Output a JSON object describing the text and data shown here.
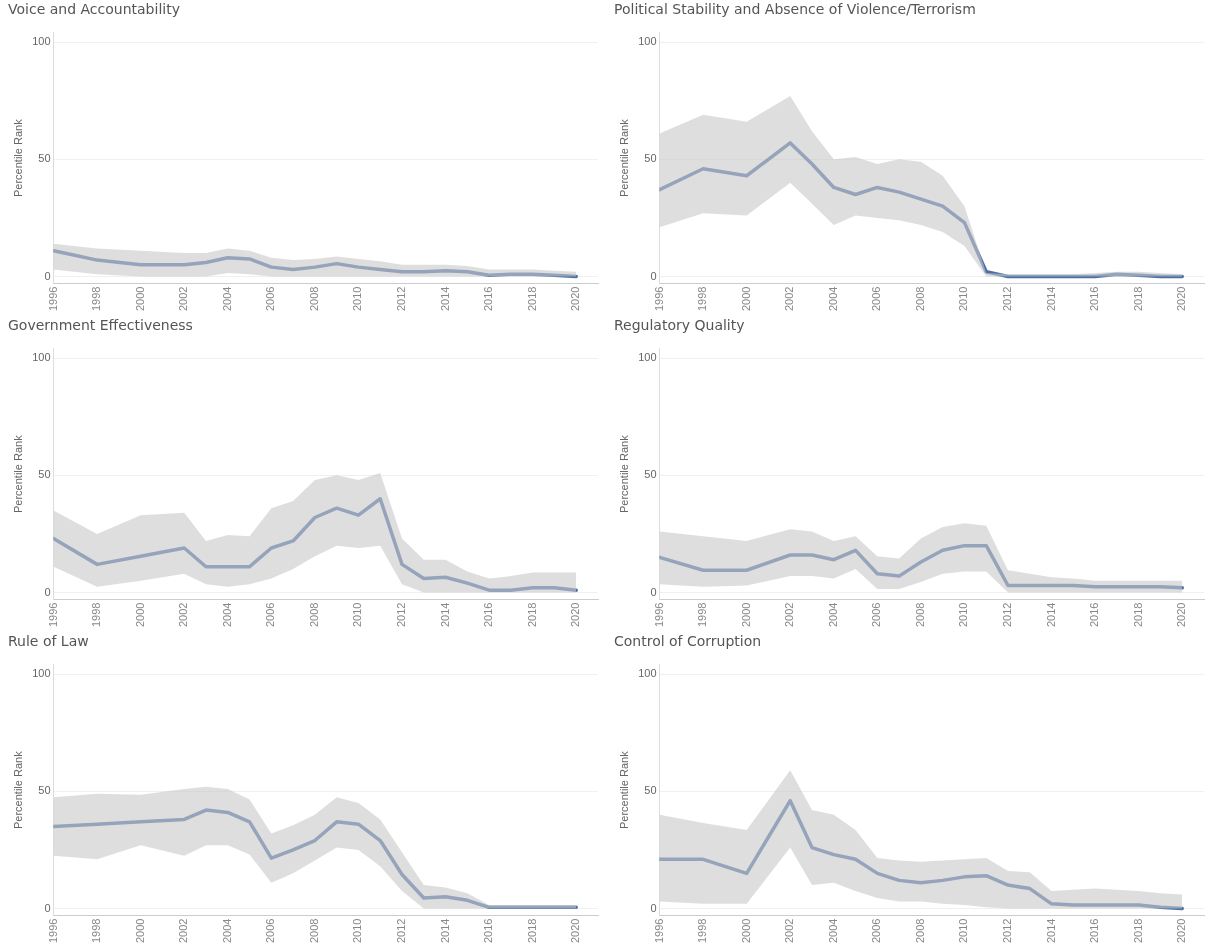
{
  "chart_data": [
    {
      "type": "line",
      "title": "Voice and Accountability",
      "ylabel": "Percentile Rank",
      "x": [
        1996,
        1998,
        2000,
        2002,
        2003,
        2004,
        2005,
        2006,
        2007,
        2008,
        2009,
        2010,
        2011,
        2012,
        2013,
        2014,
        2015,
        2016,
        2017,
        2018,
        2019,
        2020
      ],
      "xlim": [
        1996,
        2021
      ],
      "xticks": [
        1996,
        1998,
        2000,
        2002,
        2004,
        2006,
        2008,
        2010,
        2012,
        2014,
        2016,
        2018,
        2020
      ],
      "ylim": [
        -3,
        104
      ],
      "yticks": [
        0,
        50,
        100
      ],
      "grid": "y",
      "marker": "none",
      "series": [
        {
          "color": "#4a6fa5",
          "values": [
            11,
            7,
            5,
            5,
            6,
            8,
            7.5,
            4,
            3,
            4,
            5.5,
            4,
            3,
            2,
            2,
            2.5,
            2,
            0.5,
            1,
            1,
            0.5,
            0
          ],
          "lower": [
            3,
            1,
            0,
            0,
            0,
            1.5,
            1,
            0,
            0,
            0,
            0,
            0,
            0,
            0,
            0,
            0,
            0,
            0,
            0,
            0,
            0,
            0
          ],
          "upper": [
            14,
            12,
            11,
            10,
            10,
            12,
            11,
            8,
            7,
            7.5,
            8.5,
            7.5,
            6.5,
            5,
            5,
            5,
            4.5,
            3,
            3,
            3,
            2.5,
            2
          ]
        }
      ]
    },
    {
      "type": "line",
      "title": "Political Stability and Absence of Violence/Terrorism",
      "ylabel": "Percentile Rank",
      "x": [
        1996,
        1998,
        2000,
        2002,
        2003,
        2004,
        2005,
        2006,
        2007,
        2008,
        2009,
        2010,
        2011,
        2012,
        2013,
        2014,
        2015,
        2016,
        2017,
        2018,
        2019,
        2020
      ],
      "xlim": [
        1996,
        2021
      ],
      "xticks": [
        1996,
        1998,
        2000,
        2002,
        2004,
        2006,
        2008,
        2010,
        2012,
        2014,
        2016,
        2018,
        2020
      ],
      "ylim": [
        -3,
        104
      ],
      "yticks": [
        0,
        50,
        100
      ],
      "grid": "y",
      "marker": "none",
      "series": [
        {
          "color": "#4a6fa5",
          "values": [
            37,
            46,
            43,
            57,
            48,
            38,
            35,
            38,
            36,
            33,
            30,
            23,
            2,
            0,
            0,
            0,
            0,
            0,
            1,
            0.5,
            0,
            0
          ],
          "lower": [
            21,
            27,
            26,
            40,
            31,
            22,
            26,
            25,
            24,
            22,
            19,
            13,
            0,
            0,
            0,
            0,
            0,
            0,
            0,
            0,
            0,
            0
          ],
          "upper": [
            61,
            69,
            66,
            77,
            62,
            50,
            51,
            48,
            50,
            49,
            43,
            30,
            1.5,
            1,
            1,
            1,
            1,
            1.5,
            2,
            2,
            1.5,
            1
          ]
        }
      ]
    },
    {
      "type": "line",
      "title": "Government Effectiveness",
      "ylabel": "Percentile Rank",
      "x": [
        1996,
        1998,
        2000,
        2002,
        2003,
        2004,
        2005,
        2006,
        2007,
        2008,
        2009,
        2010,
        2011,
        2012,
        2013,
        2014,
        2015,
        2016,
        2017,
        2018,
        2019,
        2020
      ],
      "xlim": [
        1996,
        2021
      ],
      "xticks": [
        1996,
        1998,
        2000,
        2002,
        2004,
        2006,
        2008,
        2010,
        2012,
        2014,
        2016,
        2018,
        2020
      ],
      "ylim": [
        -3,
        104
      ],
      "yticks": [
        0,
        50,
        100
      ],
      "grid": "y",
      "marker": "none",
      "series": [
        {
          "color": "#4a6fa5",
          "values": [
            23,
            12,
            15.5,
            19,
            11,
            11,
            11,
            19,
            22,
            32,
            36,
            33,
            40,
            12,
            6,
            6.5,
            4,
            1,
            1,
            2,
            2,
            1
          ],
          "lower": [
            11,
            2.5,
            5,
            8,
            3.5,
            2.5,
            3.5,
            6,
            10,
            15.5,
            20,
            19,
            20,
            3.5,
            0,
            0,
            0,
            0,
            0,
            0,
            0,
            0
          ],
          "upper": [
            35,
            25,
            33,
            34,
            22,
            24.5,
            24,
            36,
            39,
            48,
            50,
            48,
            51,
            23,
            14,
            14,
            9,
            6,
            7,
            8.5,
            8.5,
            8.5
          ]
        }
      ]
    },
    {
      "type": "line",
      "title": "Regulatory Quality",
      "ylabel": "Percentile Rank",
      "x": [
        1996,
        1998,
        2000,
        2002,
        2003,
        2004,
        2005,
        2006,
        2007,
        2008,
        2009,
        2010,
        2011,
        2012,
        2013,
        2014,
        2015,
        2016,
        2017,
        2018,
        2019,
        2020
      ],
      "xlim": [
        1996,
        2021
      ],
      "xticks": [
        1996,
        1998,
        2000,
        2002,
        2004,
        2006,
        2008,
        2010,
        2012,
        2014,
        2016,
        2018,
        2020
      ],
      "ylim": [
        -3,
        104
      ],
      "yticks": [
        0,
        50,
        100
      ],
      "grid": "y",
      "marker": "none",
      "series": [
        {
          "color": "#4a6fa5",
          "values": [
            15,
            9.5,
            9.5,
            16,
            16,
            14,
            18,
            8,
            7,
            13,
            18,
            20,
            20,
            3,
            3,
            3,
            3,
            2.5,
            2.5,
            2.5,
            2.5,
            2
          ],
          "lower": [
            3.5,
            2.5,
            3,
            7,
            7,
            6,
            10,
            1.5,
            1.5,
            4.5,
            8,
            9,
            9,
            0,
            0,
            0,
            0,
            0,
            0,
            0,
            0,
            0
          ],
          "upper": [
            26,
            24,
            22,
            27,
            26,
            22,
            24,
            15.5,
            14.5,
            23,
            28,
            29.5,
            28.5,
            9.5,
            8,
            6.5,
            6,
            5,
            5,
            5,
            5,
            5
          ]
        }
      ]
    },
    {
      "type": "line",
      "title": "Rule of Law",
      "ylabel": "Percentile Rank",
      "x": [
        1996,
        1998,
        2000,
        2002,
        2003,
        2004,
        2005,
        2006,
        2007,
        2008,
        2009,
        2010,
        2011,
        2012,
        2013,
        2014,
        2015,
        2016,
        2017,
        2018,
        2019,
        2020
      ],
      "xlim": [
        1996,
        2021
      ],
      "xticks": [
        1996,
        1998,
        2000,
        2002,
        2004,
        2006,
        2008,
        2010,
        2012,
        2014,
        2016,
        2018,
        2020
      ],
      "ylim": [
        -3,
        104
      ],
      "yticks": [
        0,
        50,
        100
      ],
      "grid": "y",
      "marker": "none",
      "series": [
        {
          "color": "#4a6fa5",
          "values": [
            35,
            36,
            37,
            38,
            42,
            41,
            37,
            21.5,
            25,
            29,
            37,
            36,
            29,
            14.5,
            4.5,
            5,
            3.5,
            0.5,
            0.5,
            0.5,
            0.5,
            0.5
          ],
          "lower": [
            22.5,
            21,
            27,
            22.5,
            27,
            27,
            23,
            11,
            15,
            20.5,
            26,
            25,
            18,
            7.5,
            0,
            0,
            0,
            0,
            0,
            0,
            0,
            0
          ],
          "upper": [
            47.5,
            49,
            48.5,
            51,
            52,
            51,
            46.5,
            32,
            35.5,
            40,
            47.5,
            45,
            38,
            24,
            10,
            9,
            6.5,
            1.5,
            1.5,
            1.5,
            1.5,
            1.5
          ]
        }
      ]
    },
    {
      "type": "line",
      "title": "Control of Corruption",
      "ylabel": "Percentile Rank",
      "x": [
        1996,
        1998,
        2000,
        2002,
        2003,
        2004,
        2005,
        2006,
        2007,
        2008,
        2009,
        2010,
        2011,
        2012,
        2013,
        2014,
        2015,
        2016,
        2017,
        2018,
        2019,
        2020
      ],
      "xlim": [
        1996,
        2021
      ],
      "xticks": [
        1996,
        1998,
        2000,
        2002,
        2004,
        2006,
        2008,
        2010,
        2012,
        2014,
        2016,
        2018,
        2020
      ],
      "ylim": [
        -3,
        104
      ],
      "yticks": [
        0,
        50,
        100
      ],
      "grid": "y",
      "marker": "none",
      "series": [
        {
          "color": "#4a6fa5",
          "values": [
            21,
            21,
            15,
            46,
            26,
            23,
            21,
            15,
            12,
            11,
            12,
            13.5,
            14,
            10,
            8.5,
            2,
            1.5,
            1.5,
            1.5,
            1.5,
            0.5,
            0
          ],
          "lower": [
            3,
            2,
            2,
            26,
            10,
            11,
            7.5,
            4.5,
            3,
            3,
            2,
            1.5,
            0.5,
            0,
            0,
            0,
            0,
            0,
            0,
            0,
            0,
            0
          ],
          "upper": [
            40,
            36.5,
            33.5,
            59,
            42,
            40,
            33.5,
            21.5,
            20.5,
            20,
            20.5,
            21,
            21.5,
            16,
            15.5,
            7.5,
            8,
            8.5,
            8,
            7.5,
            6.5,
            6
          ]
        }
      ]
    }
  ]
}
